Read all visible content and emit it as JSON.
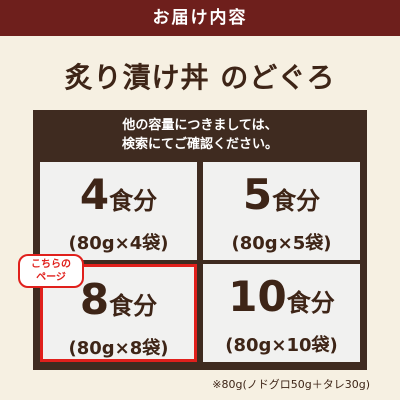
{
  "header": {
    "title": "お届け内容"
  },
  "product_title": "炙り漬け丼 のどぐろ",
  "notice": [
    "他の容量につきましては、",
    "検索にてご確認ください。"
  ],
  "options": [
    {
      "count": "4",
      "unit": "食分",
      "detail": "(80g×4袋)"
    },
    {
      "count": "5",
      "unit": "食分",
      "detail": "(80g×5袋)"
    },
    {
      "count": "8",
      "unit": "食分",
      "detail": "(80g×8袋)"
    },
    {
      "count": "10",
      "unit": "食分",
      "detail": "(80g×10袋)"
    }
  ],
  "current_label": [
    "こちらの",
    "ページ"
  ],
  "footnote": "※80g(ノドグロ50g＋タレ30g)"
}
